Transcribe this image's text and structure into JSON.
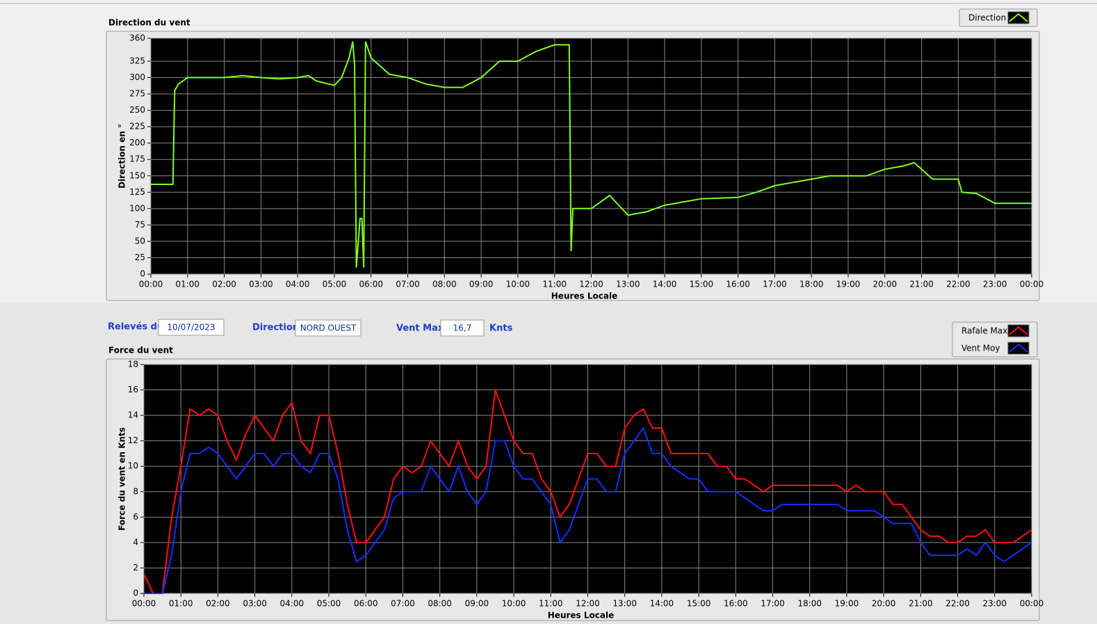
{
  "fields": [
    {
      "label": "Relevés du",
      "value": "10/07/2023"
    },
    {
      "label": "Direction",
      "value": "NORD OUEST"
    },
    {
      "label": "Vent Max",
      "value": "16,7",
      "unit": "Knts"
    }
  ],
  "chart_data": [
    {
      "type": "line",
      "title": "Direction du vent",
      "x_label": "Heures Locale",
      "y_label": "Direction en °",
      "grid": true,
      "legend": "top-right",
      "xlim": [
        0,
        24
      ],
      "xticks": [
        {
          "value": 0,
          "label": "00:00"
        },
        {
          "value": 1,
          "label": "01:00"
        },
        {
          "value": 2,
          "label": "02:00"
        },
        {
          "value": 3,
          "label": "03:00"
        },
        {
          "value": 4,
          "label": "04:00"
        },
        {
          "value": 5,
          "label": "05:00"
        },
        {
          "value": 6,
          "label": "06:00"
        },
        {
          "value": 7,
          "label": "07:00"
        },
        {
          "value": 8,
          "label": "08:00"
        },
        {
          "value": 9,
          "label": "09:00"
        },
        {
          "value": 10,
          "label": "10:00"
        },
        {
          "value": 11,
          "label": "11:00"
        },
        {
          "value": 12,
          "label": "12:00"
        },
        {
          "value": 13,
          "label": "13:00"
        },
        {
          "value": 14,
          "label": "14:00"
        },
        {
          "value": 15,
          "label": "15:00"
        },
        {
          "value": 16,
          "label": "16:00"
        },
        {
          "value": 17,
          "label": "17:00"
        },
        {
          "value": 18,
          "label": "18:00"
        },
        {
          "value": 19,
          "label": "19:00"
        },
        {
          "value": 20,
          "label": "20:00"
        },
        {
          "value": 21,
          "label": "21:00"
        },
        {
          "value": 22,
          "label": "22:00"
        },
        {
          "value": 23,
          "label": "23:00"
        },
        {
          "value": 24,
          "label": "00:00"
        }
      ],
      "ylim": [
        0,
        360
      ],
      "yticks": [
        0,
        25,
        50,
        75,
        100,
        125,
        150,
        175,
        200,
        225,
        250,
        275,
        300,
        325,
        360
      ],
      "x": [
        0,
        0.5,
        0.6,
        0.65,
        0.75,
        1,
        1.5,
        2,
        2.5,
        3,
        3.5,
        4,
        4.3,
        4.5,
        5,
        5.2,
        5.4,
        5.5,
        5.55,
        5.6,
        5.7,
        5.75,
        5.8,
        5.85,
        6,
        6.5,
        7,
        7.5,
        8,
        8.5,
        9,
        9.5,
        10,
        10.5,
        11,
        11.4,
        11.45,
        11.5,
        12,
        12.5,
        13,
        13.5,
        14,
        14.5,
        15,
        16,
        16.5,
        17,
        17.5,
        18,
        18.5,
        19,
        19.5,
        20,
        20.5,
        20.8,
        21,
        21.3,
        22,
        22.1,
        22.5,
        23,
        24
      ],
      "series": [
        {
          "name": "Direction",
          "color": "#80ff20",
          "values": [
            137,
            137,
            137,
            280,
            290,
            300,
            300,
            300,
            303,
            300,
            298,
            300,
            303,
            295,
            288,
            300,
            330,
            355,
            320,
            10,
            85,
            85,
            10,
            355,
            330,
            305,
            300,
            290,
            285,
            285,
            300,
            325,
            325,
            340,
            350,
            350,
            35,
            100,
            100,
            120,
            90,
            95,
            105,
            110,
            115,
            117,
            125,
            135,
            140,
            145,
            150,
            150,
            150,
            160,
            165,
            170,
            160,
            145,
            145,
            125,
            123,
            108,
            108
          ]
        }
      ]
    },
    {
      "type": "line",
      "title": "Force du vent",
      "x_label": "Heures Locale",
      "y_label": "Force du vent en Knts",
      "grid": true,
      "legend": "top-right",
      "xlim": [
        0,
        24
      ],
      "xticks": [
        {
          "value": 0,
          "label": "00:00"
        },
        {
          "value": 1,
          "label": "01:00"
        },
        {
          "value": 2,
          "label": "02:00"
        },
        {
          "value": 3,
          "label": "03:00"
        },
        {
          "value": 4,
          "label": "04:00"
        },
        {
          "value": 5,
          "label": "05:00"
        },
        {
          "value": 6,
          "label": "06:00"
        },
        {
          "value": 7,
          "label": "07:00"
        },
        {
          "value": 8,
          "label": "08:00"
        },
        {
          "value": 9,
          "label": "09:00"
        },
        {
          "value": 10,
          "label": "10:00"
        },
        {
          "value": 11,
          "label": "11:00"
        },
        {
          "value": 12,
          "label": "12:00"
        },
        {
          "value": 13,
          "label": "13:00"
        },
        {
          "value": 14,
          "label": "14:00"
        },
        {
          "value": 15,
          "label": "15:00"
        },
        {
          "value": 16,
          "label": "16:00"
        },
        {
          "value": 17,
          "label": "17:00"
        },
        {
          "value": 18,
          "label": "18:00"
        },
        {
          "value": 19,
          "label": "19:00"
        },
        {
          "value": 20,
          "label": "20:00"
        },
        {
          "value": 21,
          "label": "21:00"
        },
        {
          "value": 22,
          "label": "22:00"
        },
        {
          "value": 23,
          "label": "23:00"
        },
        {
          "value": 24,
          "label": "00:00"
        }
      ],
      "ylim": [
        0,
        18
      ],
      "yticks": [
        0,
        2,
        4,
        6,
        8,
        10,
        12,
        14,
        16,
        18
      ],
      "x": [
        0,
        0.25,
        0.5,
        0.75,
        1,
        1.25,
        1.5,
        1.75,
        2,
        2.25,
        2.5,
        2.75,
        3,
        3.25,
        3.5,
        3.75,
        4,
        4.25,
        4.5,
        4.75,
        5,
        5.25,
        5.5,
        5.75,
        6,
        6.25,
        6.5,
        6.75,
        7,
        7.25,
        7.5,
        7.75,
        8,
        8.25,
        8.5,
        8.75,
        9,
        9.25,
        9.5,
        9.75,
        10,
        10.25,
        10.5,
        10.75,
        11,
        11.25,
        11.5,
        11.75,
        12,
        12.25,
        12.5,
        12.75,
        13,
        13.25,
        13.5,
        13.75,
        14,
        14.25,
        14.5,
        14.75,
        15,
        15.25,
        15.5,
        15.75,
        16,
        16.25,
        16.5,
        16.75,
        17,
        17.25,
        17.5,
        17.75,
        18,
        18.25,
        18.5,
        18.75,
        19,
        19.25,
        19.5,
        19.75,
        20,
        20.25,
        20.5,
        20.75,
        21,
        21.25,
        21.5,
        21.75,
        22,
        22.25,
        22.5,
        22.75,
        23,
        23.25,
        23.5,
        23.75,
        24
      ],
      "series": [
        {
          "name": "Rafale Max",
          "color": "#ff1010",
          "values": [
            1.5,
            0,
            0,
            6,
            10,
            14.5,
            14,
            14.5,
            14,
            12,
            10.5,
            12.5,
            14,
            13,
            12,
            14,
            15,
            12,
            11,
            14,
            14,
            11,
            7,
            4,
            4,
            5,
            6,
            9,
            10,
            9.5,
            10,
            12,
            11,
            10,
            12,
            10,
            9,
            10,
            16,
            14,
            12,
            11,
            11,
            9,
            8,
            6,
            7,
            9,
            11,
            11,
            10,
            10,
            13,
            14,
            14.5,
            13,
            13,
            11,
            11,
            11,
            11,
            11,
            10,
            10,
            9,
            9,
            8.5,
            8,
            8.5,
            8.5,
            8.5,
            8.5,
            8.5,
            8.5,
            8.5,
            8.5,
            8,
            8.5,
            8,
            8,
            8,
            7,
            7,
            6,
            5,
            4.5,
            4.5,
            4,
            4,
            4.5,
            4.5,
            5,
            4,
            4,
            4,
            4.5,
            5
          ]
        },
        {
          "name": "Vent Moy",
          "color": "#1030ff",
          "values": [
            0,
            0,
            0,
            3,
            8,
            11,
            11,
            11.5,
            11,
            10,
            9,
            10,
            11,
            11,
            10,
            11,
            11,
            10,
            9.5,
            11,
            11,
            9,
            5,
            2.5,
            3,
            4,
            5,
            7.5,
            8,
            8,
            8,
            10,
            9,
            8,
            10,
            8,
            7,
            8,
            12,
            12,
            10,
            9,
            9,
            8,
            7,
            4,
            5,
            7,
            9,
            9,
            8,
            8,
            11,
            12,
            13,
            11,
            11,
            10,
            9.5,
            9,
            9,
            8,
            8,
            8,
            8,
            7.5,
            7,
            6.5,
            6.5,
            7,
            7,
            7,
            7,
            7,
            7,
            7,
            6.5,
            6.5,
            6.5,
            6.5,
            6,
            5.5,
            5.5,
            5.5,
            4,
            3,
            3,
            3,
            3,
            3.5,
            3,
            4,
            3,
            2.5,
            3,
            3.5,
            4
          ]
        }
      ]
    }
  ]
}
